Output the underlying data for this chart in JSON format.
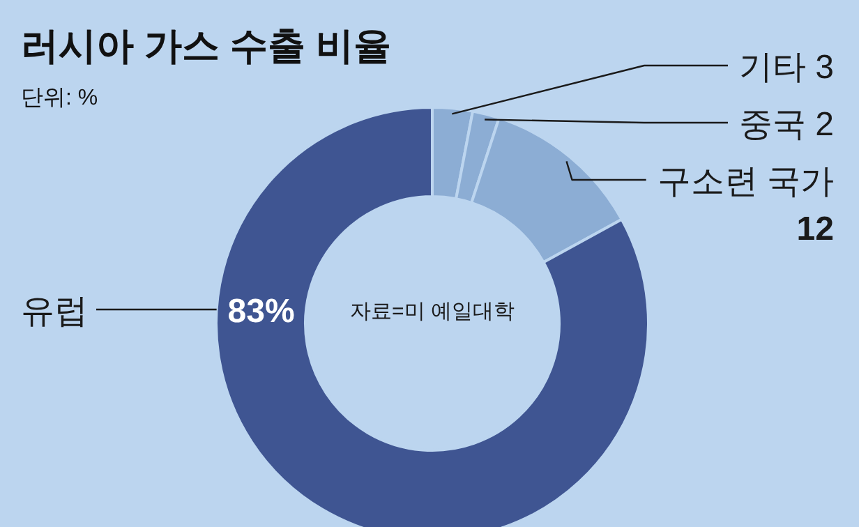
{
  "chart_data": {
    "type": "donut",
    "title": "러시아 가스 수출 비율",
    "subtitle": "단위: %",
    "categories": [
      "기타",
      "중국",
      "구소련 국가",
      "유럽"
    ],
    "values": [
      3,
      2,
      12,
      83
    ],
    "colors": [
      "#8cadd4",
      "#8cadd4",
      "#8cadd4",
      "#3f5592"
    ],
    "value_labels": [
      "3",
      "2",
      "12",
      "83%"
    ],
    "annotations": [
      "자료=미 예일대학"
    ]
  }
}
